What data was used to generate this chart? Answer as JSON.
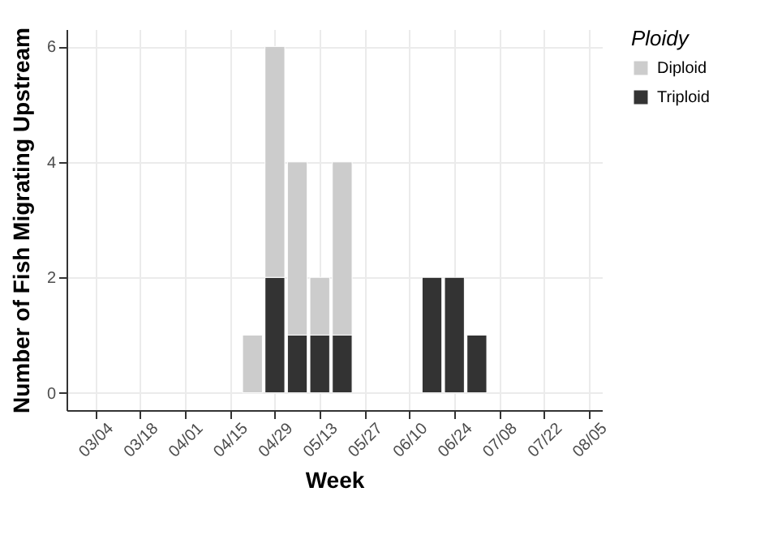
{
  "chart_data": {
    "type": "bar",
    "stacked": true,
    "xlabel": "Week",
    "ylabel": "Number of Fish Migrating Upstream",
    "legend_title": "Ploidy",
    "legend": "right",
    "grid": true,
    "xlim": [
      "--02-23",
      "--08-09"
    ],
    "xticks": [
      {
        "value": "--03-04",
        "label": "03/04"
      },
      {
        "value": "--03-18",
        "label": "03/18"
      },
      {
        "value": "--04-01",
        "label": "04/01"
      },
      {
        "value": "--04-15",
        "label": "04/15"
      },
      {
        "value": "--04-29",
        "label": "04/29"
      },
      {
        "value": "--05-13",
        "label": "05/13"
      },
      {
        "value": "--05-27",
        "label": "05/27"
      },
      {
        "value": "--06-10",
        "label": "06/10"
      },
      {
        "value": "--06-24",
        "label": "06/24"
      },
      {
        "value": "--07-08",
        "label": "07/08"
      },
      {
        "value": "--07-22",
        "label": "07/22"
      },
      {
        "value": "--08-05",
        "label": "08/05"
      }
    ],
    "x": [
      "--04-22",
      "--04-29",
      "--05-06",
      "--05-13",
      "--05-20",
      "--06-17",
      "--06-24",
      "--07-01"
    ],
    "ylim": [
      -0.3,
      6.3
    ],
    "yticks": [
      0,
      2,
      4,
      6
    ],
    "series": [
      {
        "name": "Triploid",
        "color": "#333333",
        "values": [
          null,
          2,
          1,
          1,
          1,
          2,
          2,
          1
        ]
      },
      {
        "name": "Diploid",
        "color": "#cccccc",
        "values": [
          1,
          4,
          3,
          1,
          3,
          null,
          null,
          null
        ]
      }
    ]
  }
}
